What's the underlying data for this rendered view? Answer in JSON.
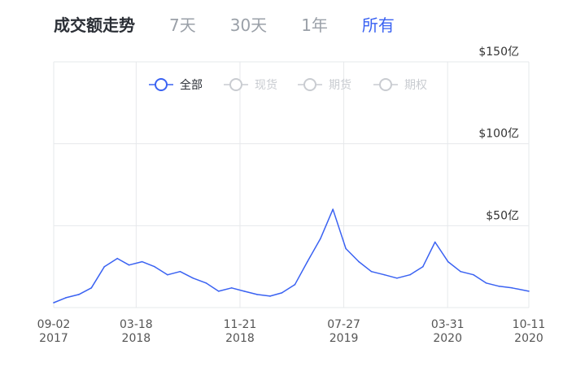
{
  "header": {
    "title": "成交额走势",
    "tabs": [
      {
        "label": "7天",
        "active": false
      },
      {
        "label": "30天",
        "active": false
      },
      {
        "label": "1年",
        "active": false
      },
      {
        "label": "所有",
        "active": true
      }
    ]
  },
  "colors": {
    "accent": "#3a62f2",
    "inactive": "#c9ccd1",
    "grid": "#e6e8eb"
  },
  "chart_data": {
    "type": "line",
    "title": "成交额走势",
    "legend": {
      "placement": "top",
      "entries": [
        {
          "name": "全部",
          "active": true
        },
        {
          "name": "现货",
          "active": false
        },
        {
          "name": "期货",
          "active": false
        },
        {
          "name": "期权",
          "active": false
        }
      ]
    },
    "x_ticks": [
      {
        "date": "2017-09-02",
        "line1": "09-02",
        "line2": "2017"
      },
      {
        "date": "2018-03-18",
        "line1": "03-18",
        "line2": "2018"
      },
      {
        "date": "2018-11-21",
        "line1": "11-21",
        "line2": "2018"
      },
      {
        "date": "2019-07-27",
        "line1": "07-27",
        "line2": "2019"
      },
      {
        "date": "2020-03-31",
        "line1": "03-31",
        "line2": "2020"
      },
      {
        "date": "2020-10-11",
        "line1": "10-11",
        "line2": "2020"
      }
    ],
    "y_ticks": [
      {
        "value": 50,
        "label": "$50亿"
      },
      {
        "value": 100,
        "label": "$100亿"
      },
      {
        "value": 150,
        "label": "$150亿"
      }
    ],
    "xlim": [
      "2017-09-02",
      "2020-10-11"
    ],
    "ylim": [
      0,
      150
    ],
    "grid": true,
    "series": [
      {
        "name": "全部",
        "color": "#3a62f2",
        "x": [
          "2017-09-02",
          "2017-10-01",
          "2017-11-01",
          "2017-12-01",
          "2018-01-01",
          "2018-02-01",
          "2018-03-01",
          "2018-04-01",
          "2018-05-01",
          "2018-06-01",
          "2018-07-01",
          "2018-08-01",
          "2018-09-01",
          "2018-10-01",
          "2018-11-01",
          "2018-12-01",
          "2019-01-01",
          "2019-02-01",
          "2019-03-01",
          "2019-04-01",
          "2019-05-01",
          "2019-06-01",
          "2019-07-01",
          "2019-08-01",
          "2019-09-01",
          "2019-10-01",
          "2019-11-01",
          "2019-12-01",
          "2020-01-01",
          "2020-02-01",
          "2020-03-01",
          "2020-04-01",
          "2020-05-01",
          "2020-06-01",
          "2020-07-01",
          "2020-08-01",
          "2020-09-01",
          "2020-10-11"
        ],
        "values": [
          3,
          6,
          8,
          12,
          25,
          30,
          26,
          28,
          25,
          20,
          22,
          18,
          15,
          10,
          12,
          10,
          8,
          7,
          9,
          14,
          28,
          42,
          60,
          36,
          28,
          22,
          20,
          18,
          20,
          25,
          40,
          28,
          22,
          20,
          15,
          13,
          12,
          10
        ]
      }
    ]
  }
}
